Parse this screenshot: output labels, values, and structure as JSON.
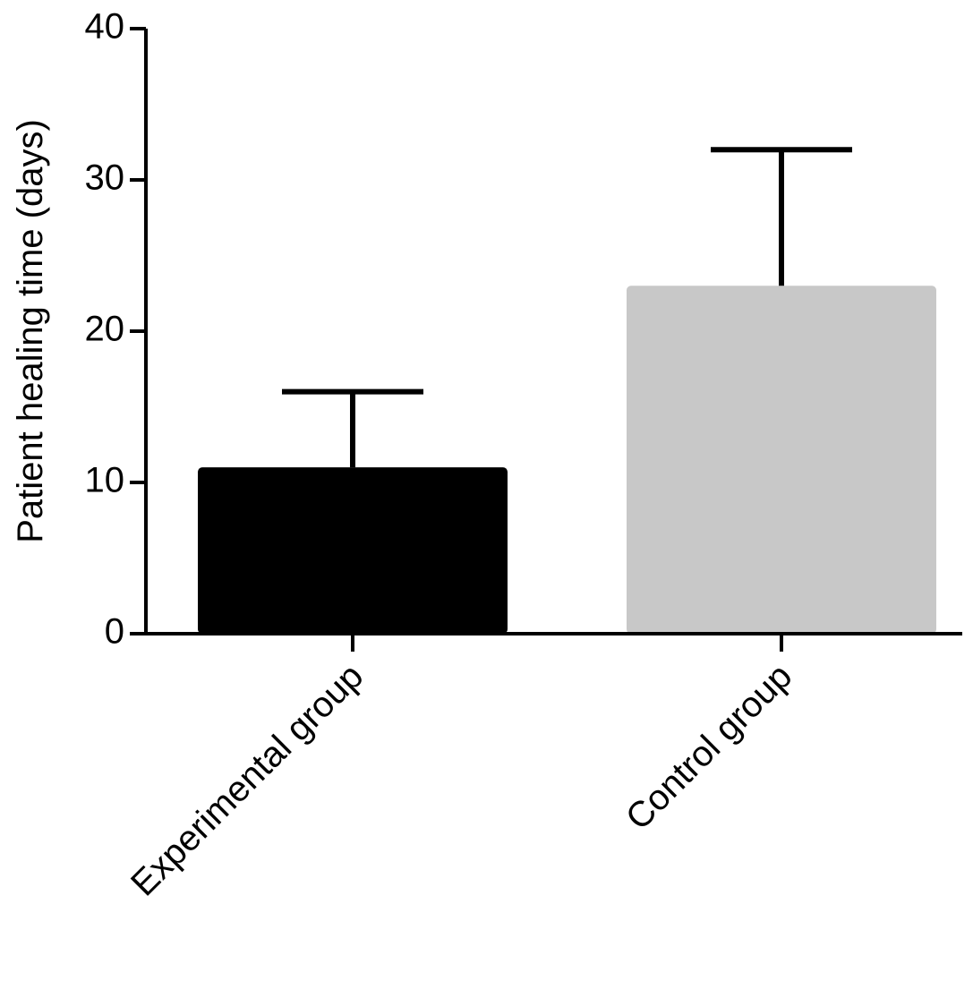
{
  "chart_data": {
    "type": "bar",
    "title": "",
    "xlabel": "",
    "ylabel": "Patient healing time (days)",
    "ylim": [
      0,
      40
    ],
    "yticks": [
      0,
      10,
      20,
      30,
      40
    ],
    "ytick_labels": [
      "0",
      "10",
      "20",
      "30",
      "40"
    ],
    "categories": [
      "Experimental group",
      "Control group"
    ],
    "values": [
      11,
      23
    ],
    "error_upper": [
      16,
      32
    ],
    "colors": [
      "#000000",
      "#c8c8c8"
    ],
    "grid": false,
    "legend": "none"
  }
}
